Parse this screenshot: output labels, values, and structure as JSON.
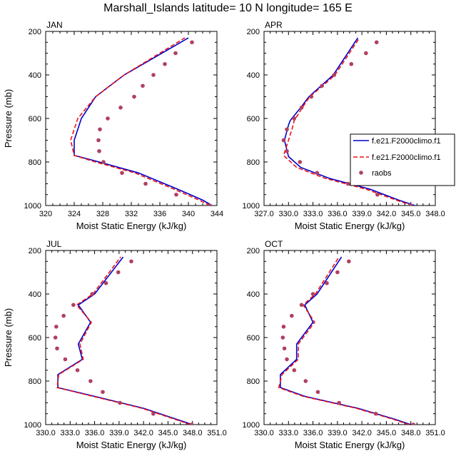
{
  "title": "Marshall_Islands  latitude= 10 N longitude= 165 E",
  "ylabel": "Pressure (mb)",
  "xlabel": "Moist Static Energy (kJ/kg)",
  "colors": {
    "series1": "#0000cc",
    "series2": "#ee1111",
    "obs": "#b04060"
  },
  "legend": {
    "position": "right of APR panel",
    "entries": [
      "f.e21.F2000climo.f1",
      "f.e21.F2000climo.f1",
      "raobs"
    ]
  },
  "chart_data": [
    {
      "type": "line",
      "panel_label": "JAN",
      "xlabel": "Moist Static Energy (kJ/kg)",
      "ylabel": "Pressure (mb)",
      "xlim": [
        320,
        344
      ],
      "xticks": [
        320,
        324,
        328,
        332,
        336,
        340,
        344
      ],
      "xtick_labels": [
        "320",
        "324",
        "328",
        "332",
        "336",
        "340",
        "344"
      ],
      "ylim": [
        1000,
        200
      ],
      "yticks": [
        200,
        400,
        600,
        800,
        1000
      ],
      "ytick_labels": [
        "200",
        "400",
        "600",
        "800",
        "1000"
      ],
      "series": [
        {
          "name": "f.e21.F2000climo.f1",
          "style": "solid",
          "x": [
            343.3,
            342.0,
            338.5,
            333.0,
            327.5,
            324.0,
            324.0,
            325.0,
            327.0,
            331.0,
            340.0
          ],
          "y": [
            1000,
            975,
            925,
            850,
            800,
            770,
            700,
            600,
            500,
            400,
            230
          ]
        },
        {
          "name": "f.e21.F2000climo.f1",
          "style": "dashed",
          "x": [
            343.0,
            341.5,
            338.0,
            332.5,
            327.0,
            324.0,
            323.5,
            324.5,
            327.0,
            331.0,
            339.5
          ],
          "y": [
            1000,
            975,
            925,
            850,
            800,
            770,
            700,
            600,
            500,
            400,
            230
          ]
        },
        {
          "name": "raobs",
          "style": "markers",
          "x": [
            343.0,
            338.3,
            334.0,
            330.7,
            328.1,
            327.5,
            327.4,
            327.6,
            328.7,
            330.5,
            332.4,
            333.6,
            335.1,
            336.7,
            338.2,
            340.5
          ],
          "y": [
            1000,
            950,
            900,
            850,
            800,
            750,
            700,
            650,
            600,
            550,
            500,
            450,
            400,
            350,
            300,
            250
          ]
        }
      ]
    },
    {
      "type": "line",
      "panel_label": "APR",
      "xlabel": "Moist Static Energy (kJ/kg)",
      "ylabel": "",
      "xlim": [
        327,
        348
      ],
      "xticks": [
        327,
        330,
        333,
        336,
        339,
        342,
        345,
        348
      ],
      "xtick_labels": [
        "327.0",
        "330.0",
        "333.0",
        "336.0",
        "339.0",
        "342.0",
        "345.0",
        "348.0"
      ],
      "ylim": [
        1000,
        200
      ],
      "yticks": [
        200,
        400,
        600,
        800,
        1000
      ],
      "ytick_labels": [
        "200",
        "400",
        "600",
        "800",
        "1000"
      ],
      "series": [
        {
          "name": "f.e21.F2000climo.f1",
          "style": "solid",
          "x": [
            345.5,
            343.5,
            340.0,
            335.0,
            331.5,
            330.0,
            329.5,
            330.0,
            330.2,
            331.5,
            332.5,
            334.0,
            335.5,
            338.5
          ],
          "y": [
            1000,
            975,
            925,
            875,
            825,
            775,
            700,
            630,
            610,
            550,
            500,
            450,
            400,
            230
          ]
        },
        {
          "name": "f.e21.F2000climo.f1",
          "style": "dashed",
          "x": [
            345.2,
            343.2,
            339.5,
            334.5,
            331.0,
            329.4,
            330.0,
            330.5,
            330.7,
            331.7,
            332.6,
            334.2,
            335.7,
            338.7
          ],
          "y": [
            1000,
            975,
            925,
            875,
            825,
            770,
            700,
            640,
            610,
            550,
            500,
            450,
            400,
            230
          ]
        },
        {
          "name": "raobs",
          "style": "markers",
          "x": [
            345.0,
            340.9,
            337.3,
            333.5,
            331.4,
            329.8,
            329.4,
            329.8,
            330.7,
            331.6,
            332.8,
            334.1,
            335.6,
            337.7,
            339.5,
            340.8
          ],
          "y": [
            1000,
            950,
            900,
            850,
            800,
            750,
            700,
            650,
            600,
            550,
            500,
            450,
            400,
            350,
            300,
            250
          ]
        }
      ]
    },
    {
      "type": "line",
      "panel_label": "JUL",
      "xlabel": "Moist Static Energy (kJ/kg)",
      "ylabel": "Pressure (mb)",
      "xlim": [
        330,
        351
      ],
      "xticks": [
        330,
        333,
        336,
        339,
        342,
        345,
        348,
        351
      ],
      "xtick_labels": [
        "330.0",
        "333.0",
        "336.0",
        "339.0",
        "342.0",
        "345.0",
        "348.0",
        "351.0"
      ],
      "ylim": [
        1000,
        200
      ],
      "yticks": [
        200,
        400,
        600,
        800,
        1000
      ],
      "ytick_labels": [
        "200",
        "400",
        "600",
        "800",
        "1000"
      ],
      "series": [
        {
          "name": "f.e21.F2000climo.f1",
          "style": "solid",
          "x": [
            348.0,
            346.0,
            342.0,
            336.0,
            331.5,
            331.5,
            334.5,
            334.0,
            335.5,
            334.0,
            336.0,
            339.5
          ],
          "y": [
            1000,
            975,
            925,
            870,
            830,
            770,
            700,
            630,
            530,
            450,
            400,
            230
          ]
        },
        {
          "name": "f.e21.F2000climo.f1",
          "style": "dashed",
          "x": [
            347.8,
            345.8,
            341.8,
            335.8,
            331.4,
            331.6,
            334.6,
            334.2,
            335.6,
            333.8,
            335.8,
            339.2
          ],
          "y": [
            1000,
            975,
            925,
            870,
            830,
            770,
            700,
            630,
            530,
            450,
            400,
            230
          ]
        },
        {
          "name": "raobs",
          "style": "markers",
          "x": [
            347.9,
            343.2,
            339.1,
            337.0,
            335.5,
            333.9,
            332.4,
            331.4,
            331.2,
            331.3,
            332.2,
            333.4,
            335.7,
            337.4,
            338.9,
            340.5
          ],
          "y": [
            1000,
            950,
            900,
            850,
            800,
            750,
            700,
            650,
            600,
            550,
            500,
            450,
            400,
            350,
            300,
            250
          ]
        }
      ]
    },
    {
      "type": "line",
      "panel_label": "OCT",
      "xlabel": "Moist Static Energy (kJ/kg)",
      "ylabel": "",
      "xlim": [
        330,
        351
      ],
      "xticks": [
        330,
        333,
        336,
        339,
        342,
        345,
        348,
        351
      ],
      "xtick_labels": [
        "330.0",
        "333.0",
        "336.0",
        "339.0",
        "342.0",
        "345.0",
        "348.0",
        "351.0"
      ],
      "ylim": [
        1000,
        200
      ],
      "yticks": [
        200,
        400,
        600,
        800,
        1000
      ],
      "ytick_labels": [
        "200",
        "400",
        "600",
        "800",
        "1000"
      ],
      "series": [
        {
          "name": "f.e21.F2000climo.f1",
          "style": "solid",
          "x": [
            348.0,
            346.0,
            341.5,
            335.0,
            332.0,
            332.0,
            334.0,
            334.0,
            336.0,
            335.0,
            336.5,
            339.5
          ],
          "y": [
            1000,
            975,
            925,
            870,
            830,
            770,
            700,
            630,
            530,
            450,
            400,
            230
          ]
        },
        {
          "name": "f.e21.F2000climo.f1",
          "style": "dashed",
          "x": [
            347.8,
            345.8,
            341.3,
            334.8,
            331.8,
            332.2,
            334.2,
            334.2,
            336.2,
            334.8,
            336.3,
            339.2
          ],
          "y": [
            1000,
            975,
            925,
            870,
            830,
            770,
            700,
            630,
            530,
            450,
            400,
            230
          ]
        },
        {
          "name": "raobs",
          "style": "markers",
          "x": [
            348.3,
            343.7,
            339.2,
            336.6,
            335.1,
            333.7,
            332.8,
            332.5,
            332.3,
            332.4,
            333.4,
            334.6,
            336.0,
            337.7,
            339.0,
            340.4
          ],
          "y": [
            1000,
            950,
            900,
            850,
            800,
            750,
            700,
            650,
            600,
            550,
            500,
            450,
            400,
            350,
            300,
            250
          ]
        }
      ]
    }
  ]
}
